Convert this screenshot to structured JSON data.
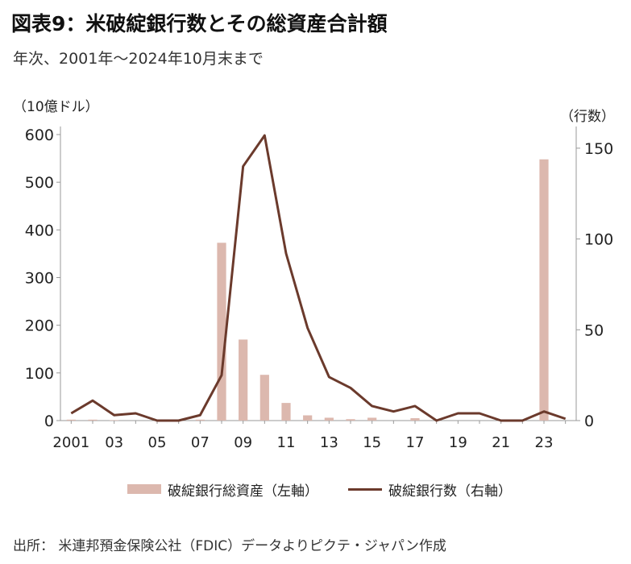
{
  "title": "図表9：米破綻銀行数とその総資産合計額",
  "subtitle": "年次、2001年～2024年10月末まで",
  "unit_left": "（10億ドル）",
  "unit_right": "（行数）",
  "source": "出所： 米連邦預金保険公社（FDIC）データよりピクテ・ジャパン作成",
  "colors": {
    "bar": "#dcb8ae",
    "line": "#6b3a2c",
    "axis": "#999999"
  },
  "chart_data": {
    "type": "bar",
    "title": "図表9：米破綻銀行数とその総資産合計額",
    "x": [
      2001,
      2002,
      2003,
      2004,
      2005,
      2006,
      2007,
      2008,
      2009,
      2010,
      2011,
      2012,
      2013,
      2014,
      2015,
      2016,
      2017,
      2018,
      2019,
      2020,
      2021,
      2022,
      2023,
      2024
    ],
    "x_tick_labels": [
      "2001",
      "03",
      "05",
      "07",
      "09",
      "11",
      "13",
      "15",
      "17",
      "19",
      "21",
      "23"
    ],
    "x_tick_years": [
      2001,
      2003,
      2005,
      2007,
      2009,
      2011,
      2013,
      2015,
      2017,
      2019,
      2021,
      2023
    ],
    "series": [
      {
        "name": "破綻銀行総資産（左軸）",
        "type": "bar",
        "axis": "left",
        "values": [
          2,
          2,
          1,
          0,
          0,
          0,
          2,
          373,
          170,
          96,
          37,
          11,
          6,
          3,
          6,
          0,
          5,
          0,
          0,
          0,
          0,
          0,
          548,
          0
        ]
      },
      {
        "name": "破綻銀行数（右軸）",
        "type": "line",
        "axis": "right",
        "values": [
          4,
          11,
          3,
          4,
          0,
          0,
          3,
          25,
          140,
          157,
          92,
          51,
          24,
          18,
          8,
          5,
          8,
          0,
          4,
          4,
          0,
          0,
          5,
          1
        ]
      }
    ],
    "y_left": {
      "label": "（10億ドル）",
      "range": [
        0,
        600
      ],
      "ticks": [
        0,
        100,
        200,
        300,
        400,
        500,
        600
      ]
    },
    "y_right": {
      "label": "（行数）",
      "range": [
        0,
        157.5
      ],
      "ticks": [
        0,
        50,
        100,
        150
      ]
    },
    "grid": false,
    "legend_position": "bottom"
  },
  "legend": {
    "bar_label": "破綻銀行総資産（左軸）",
    "line_label": "破綻銀行数（右軸）"
  }
}
